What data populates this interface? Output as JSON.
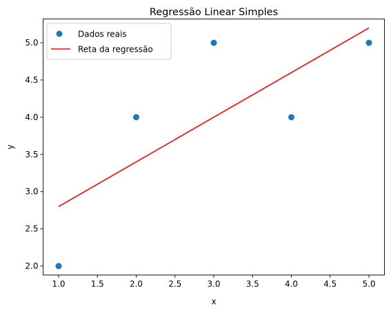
{
  "chart_data": {
    "type": "scatter",
    "title": "Regressão Linear Simples",
    "xlabel": "x",
    "ylabel": "y",
    "xlim": [
      0.8,
      5.2
    ],
    "ylim": [
      1.88,
      5.32
    ],
    "xticks": [
      "1.0",
      "1.5",
      "2.0",
      "2.5",
      "3.0",
      "3.5",
      "4.0",
      "4.5",
      "5.0"
    ],
    "yticks": [
      "2.0",
      "2.5",
      "3.0",
      "3.5",
      "4.0",
      "4.5",
      "5.0"
    ],
    "grid": false,
    "legend_position": "top-left",
    "series": [
      {
        "name": "Dados reais",
        "kind": "scatter",
        "color": "#1f77b4",
        "x": [
          1,
          2,
          3,
          4,
          5
        ],
        "y": [
          2,
          4,
          5,
          4,
          5
        ]
      },
      {
        "name": "Reta da regressão",
        "kind": "line",
        "color": "#ff0000",
        "x": [
          1,
          2,
          3,
          4,
          5
        ],
        "y": [
          2.8,
          3.4,
          4.0,
          4.6,
          5.2
        ]
      }
    ]
  }
}
